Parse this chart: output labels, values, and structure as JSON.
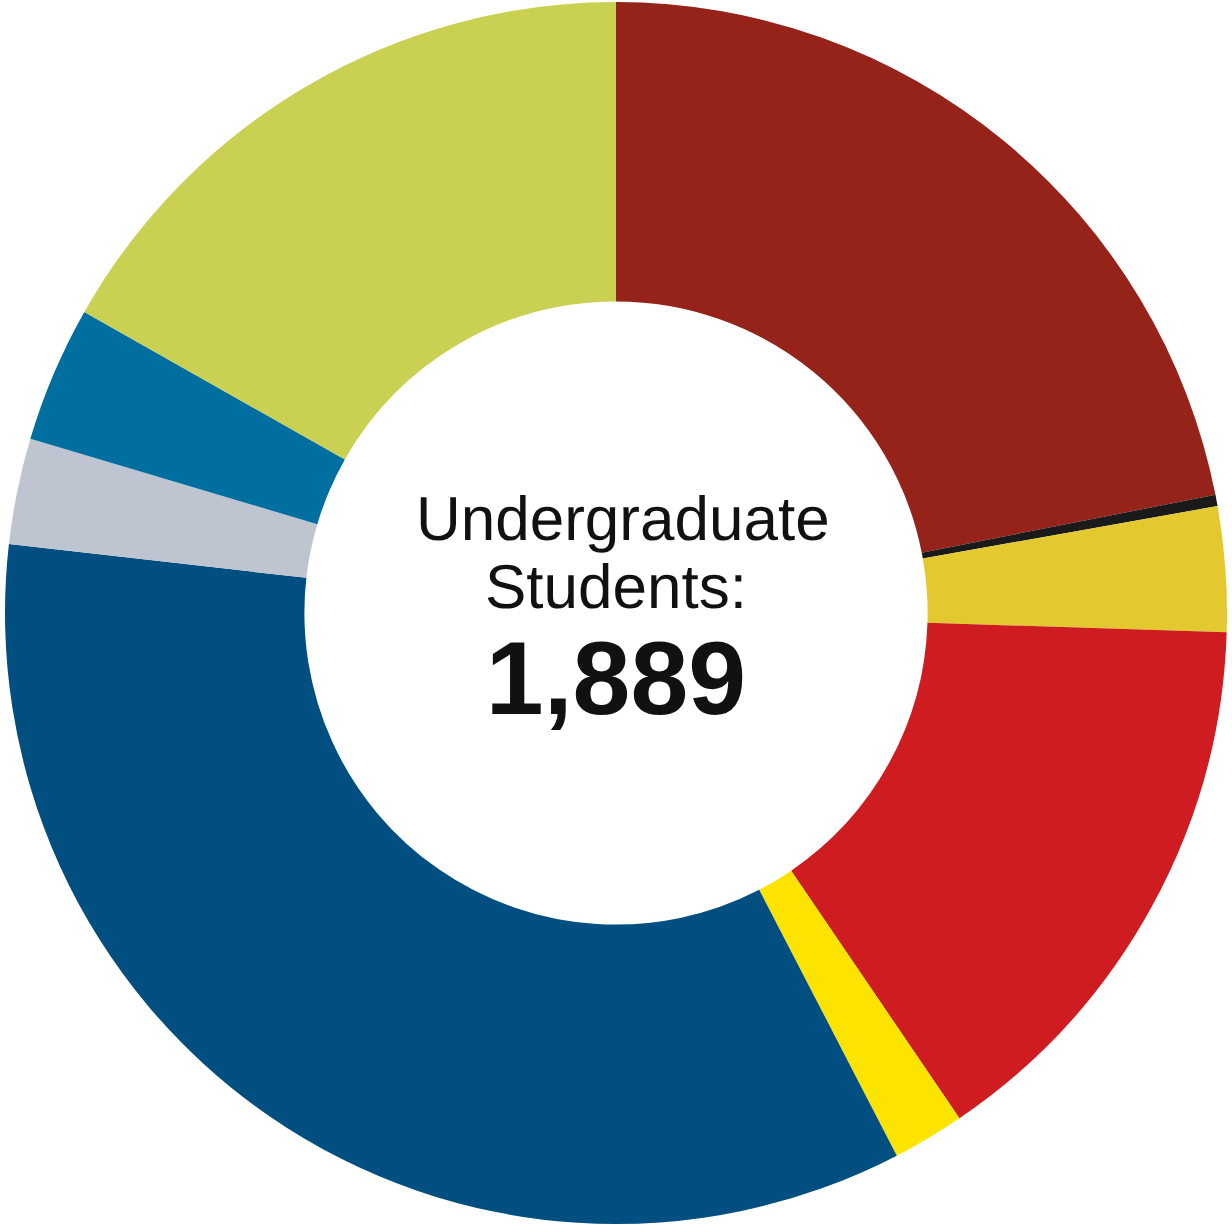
{
  "chart_data": {
    "type": "donut",
    "title": "Undergraduate Students:",
    "annotations": [
      "1,889"
    ],
    "categories": [
      null,
      null,
      null,
      null,
      null,
      null,
      null,
      null,
      null
    ],
    "values": [
      21.9,
      0.3,
      3.3,
      15.0,
      1.9,
      34.4,
      2.8,
      3.6,
      16.8
    ],
    "colors": [
      "#96231a",
      "#1a1a1a",
      "#e3c92f",
      "#cf1c20",
      "#fce300",
      "#004f80",
      "#bfc5d0",
      "#006fa0",
      "#c9d052"
    ],
    "legend": false
  }
}
